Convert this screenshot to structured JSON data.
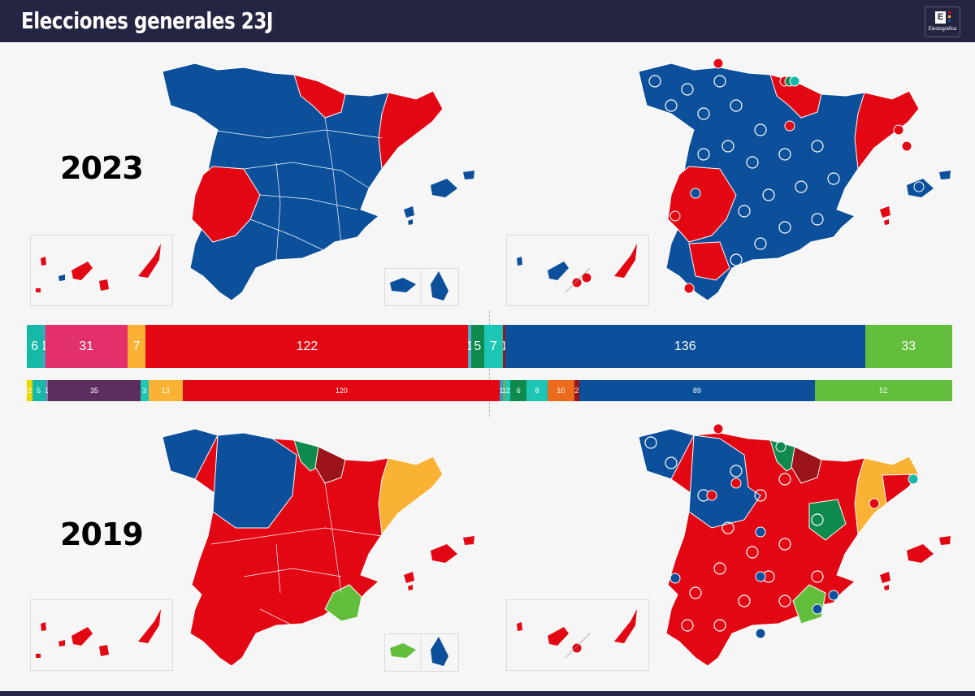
{
  "title": "Elecciones generales 23J",
  "logo": {
    "letter": "E",
    "text": "Electográfica"
  },
  "years": {
    "top": "2023",
    "bottom": "2019"
  },
  "colors": {
    "pp": "#0c4f9a",
    "psoe": "#e30613",
    "vox": "#63be3c",
    "erc": "#f9b233",
    "bildu": "#0e8a4d",
    "pnv": "#9b1419",
    "sumar": "#e3306b",
    "podemos": "#5c2e5e",
    "teal": "#16b9a8",
    "cs": "#ec6a1c",
    "land": "#0c4f9a",
    "border": "#ffffff"
  },
  "chart_data": [
    {
      "type": "bar",
      "title": "2023",
      "orientation": "stacked-horizontal",
      "segments": [
        {
          "label": "6",
          "value": 6,
          "color": "#16b9a8"
        },
        {
          "label": "1",
          "value": 1,
          "color": "#4a9ec0"
        },
        {
          "label": "31",
          "value": 31,
          "color": "#e3306b"
        },
        {
          "label": "7",
          "value": 7,
          "color": "#f9b233"
        },
        {
          "label": "122",
          "value": 122,
          "color": "#e30613"
        },
        {
          "label": "1",
          "value": 1,
          "color": "#5aa9c9"
        },
        {
          "label": "5",
          "value": 5,
          "color": "#0e8a4d"
        },
        {
          "label": "7",
          "value": 7,
          "color": "#1dc6b4"
        },
        {
          "label": "1",
          "value": 1,
          "color": "#9b1419"
        },
        {
          "label": "136",
          "value": 136,
          "color": "#0c4f9a"
        },
        {
          "label": "33",
          "value": 33,
          "color": "#63be3c"
        }
      ]
    },
    {
      "type": "bar",
      "title": "2019",
      "orientation": "stacked-horizontal",
      "segments": [
        {
          "label": "2",
          "value": 2,
          "color": "#e8d800"
        },
        {
          "label": "5",
          "value": 5,
          "color": "#16b9a8"
        },
        {
          "label": "1",
          "value": 1,
          "color": "#7b7fb5"
        },
        {
          "label": "35",
          "value": 35,
          "color": "#5c2e5e"
        },
        {
          "label": "3",
          "value": 3,
          "color": "#1dc6b4"
        },
        {
          "label": "13",
          "value": 13,
          "color": "#f9b233"
        },
        {
          "label": "120",
          "value": 120,
          "color": "#e30613"
        },
        {
          "label": "1",
          "value": 1,
          "color": "#2b9ad2"
        },
        {
          "label": "1",
          "value": 1,
          "color": "#7aa84a"
        },
        {
          "label": "2",
          "value": 2,
          "color": "#1dc6b4"
        },
        {
          "label": "6",
          "value": 6,
          "color": "#0e8a4d"
        },
        {
          "label": "8",
          "value": 8,
          "color": "#1dc6b4"
        },
        {
          "label": "10",
          "value": 10,
          "color": "#ec6a1c"
        },
        {
          "label": "2",
          "value": 2,
          "color": "#9b1419"
        },
        {
          "label": "89",
          "value": 89,
          "color": "#0c4f9a"
        },
        {
          "label": "52",
          "value": 52,
          "color": "#63be3c"
        }
      ]
    }
  ]
}
